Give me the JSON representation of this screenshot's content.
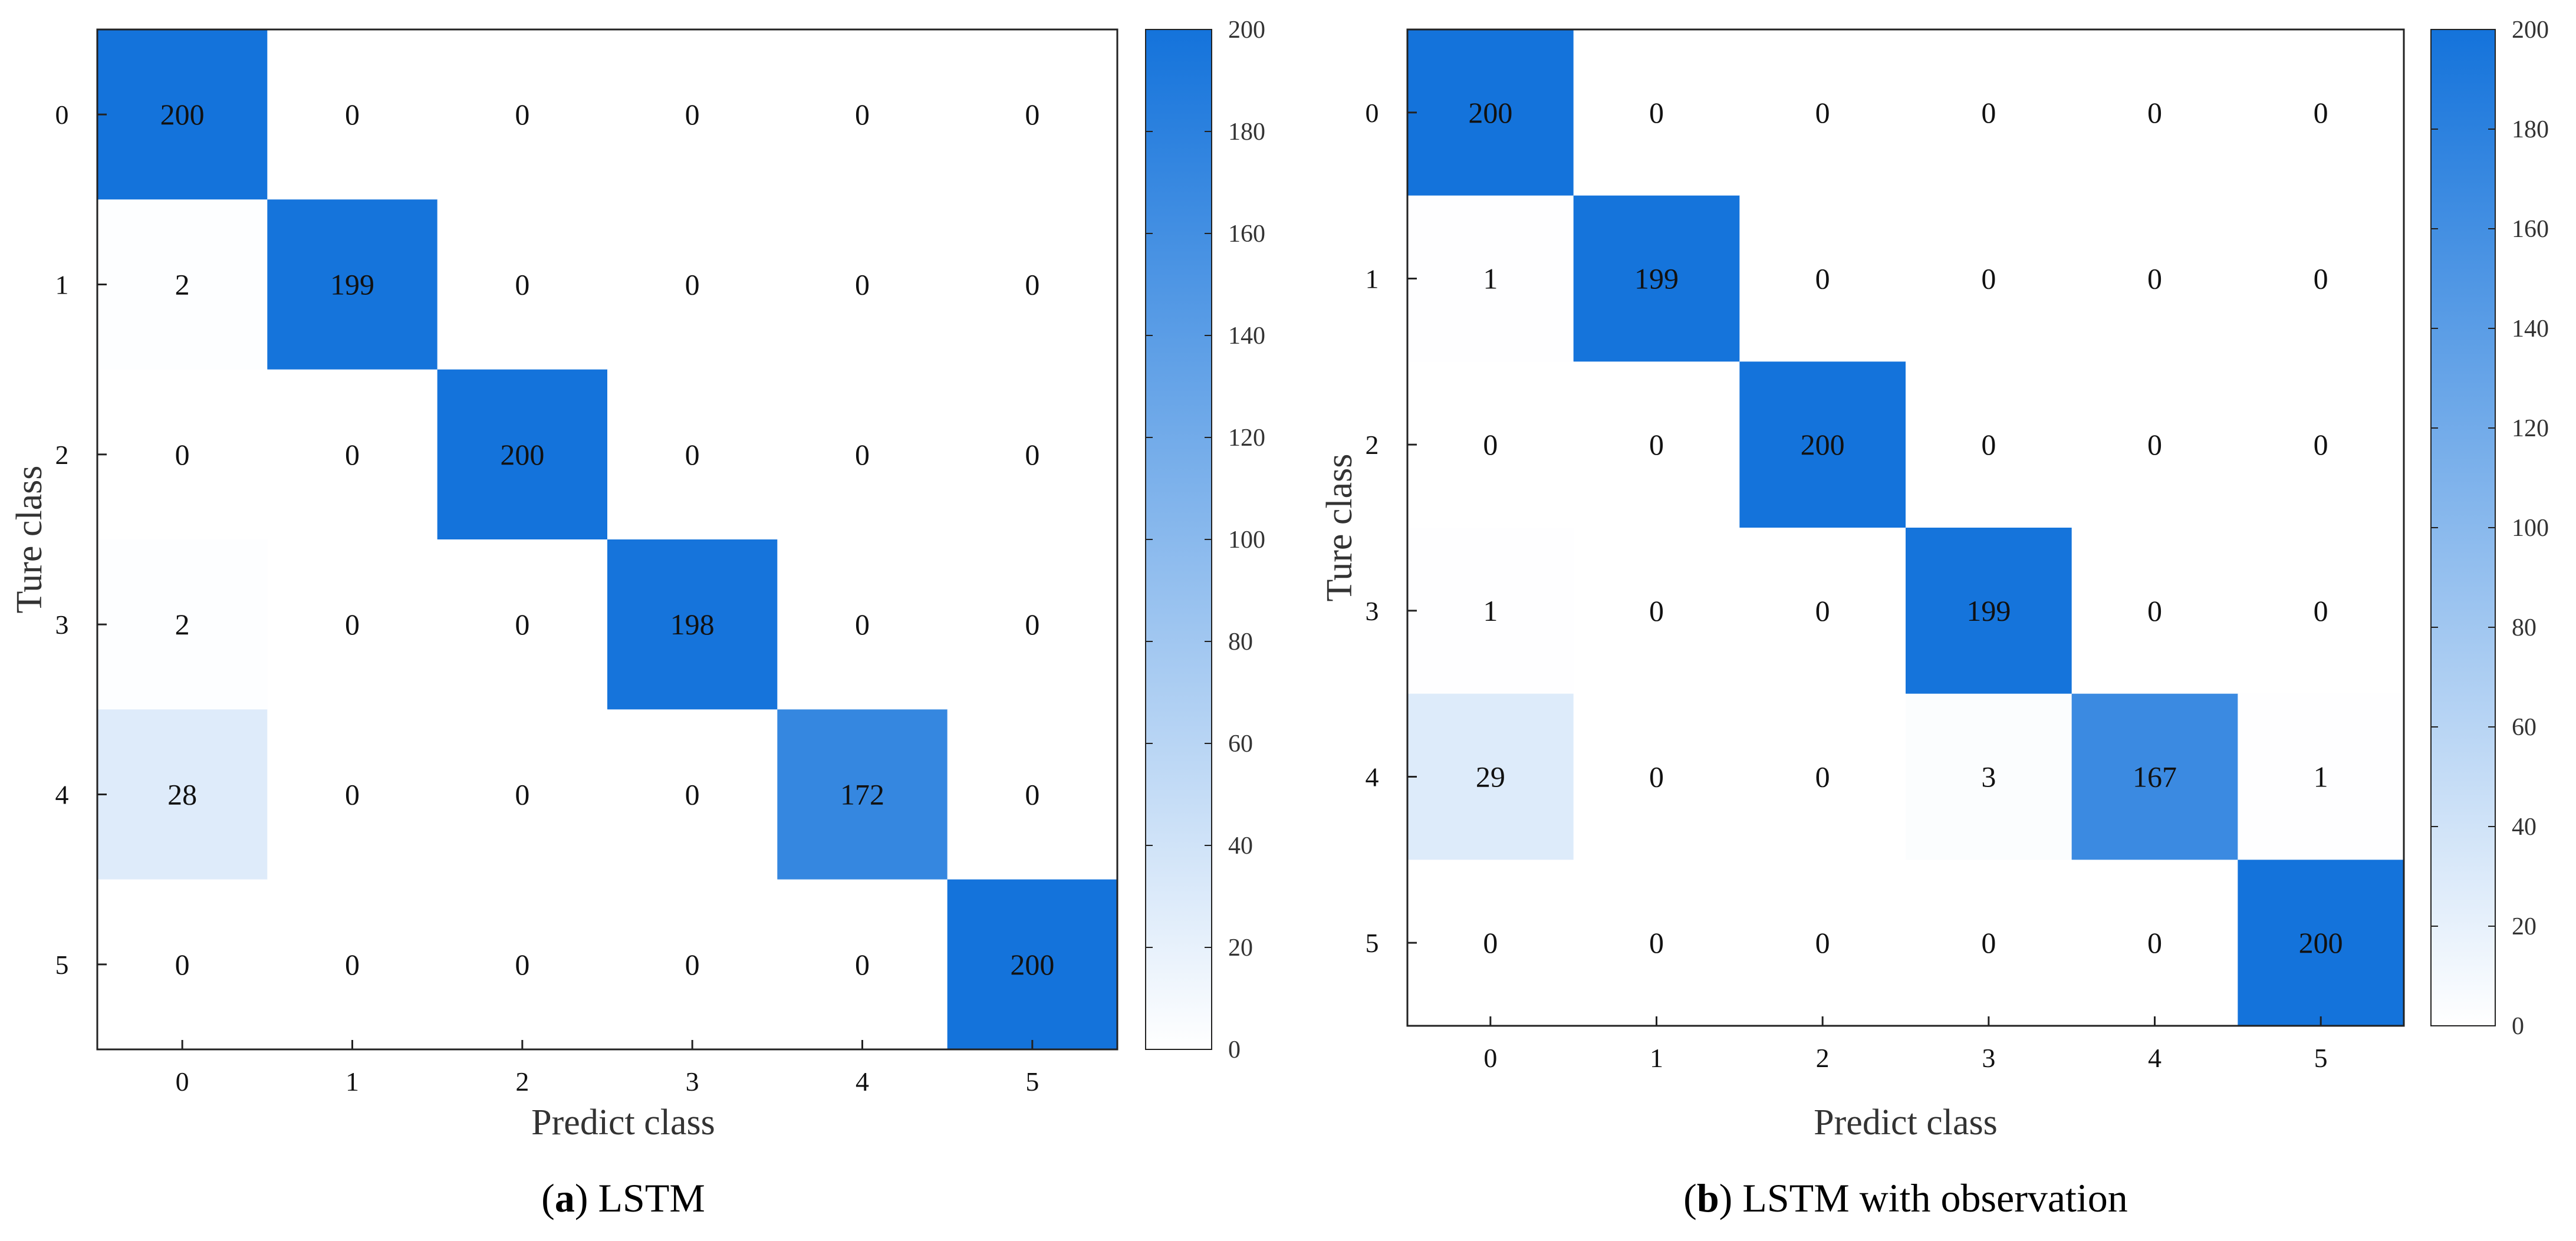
{
  "colors": {
    "high": "#1473db",
    "low": "#ffffff",
    "text": "#111111",
    "axis": "#222222"
  },
  "chart_data": [
    {
      "type": "heatmap",
      "title": "",
      "caption_letter": "a",
      "caption_text": "LSTM",
      "xlabel": "Predict class",
      "ylabel": "Ture class",
      "x_categories": [
        "0",
        "1",
        "2",
        "3",
        "4",
        "5"
      ],
      "y_categories": [
        "0",
        "1",
        "2",
        "3",
        "4",
        "5"
      ],
      "matrix": [
        [
          200,
          0,
          0,
          0,
          0,
          0
        ],
        [
          2,
          199,
          0,
          0,
          0,
          0
        ],
        [
          0,
          0,
          200,
          0,
          0,
          0
        ],
        [
          2,
          0,
          0,
          198,
          0,
          0
        ],
        [
          28,
          0,
          0,
          0,
          172,
          0
        ],
        [
          0,
          0,
          0,
          0,
          0,
          200
        ]
      ],
      "colorbar": {
        "range": [
          0,
          200
        ],
        "ticks": [
          0,
          20,
          40,
          60,
          80,
          100,
          120,
          140,
          160,
          180,
          200
        ]
      }
    },
    {
      "type": "heatmap",
      "title": "",
      "caption_letter": "b",
      "caption_text": "LSTM with observation",
      "xlabel": "Predict class",
      "ylabel": "Ture class",
      "x_categories": [
        "0",
        "1",
        "2",
        "3",
        "4",
        "5"
      ],
      "y_categories": [
        "0",
        "1",
        "2",
        "3",
        "4",
        "5"
      ],
      "matrix": [
        [
          200,
          0,
          0,
          0,
          0,
          0
        ],
        [
          1,
          199,
          0,
          0,
          0,
          0
        ],
        [
          0,
          0,
          200,
          0,
          0,
          0
        ],
        [
          1,
          0,
          0,
          199,
          0,
          0
        ],
        [
          29,
          0,
          0,
          3,
          167,
          1
        ],
        [
          0,
          0,
          0,
          0,
          0,
          200
        ]
      ],
      "colorbar": {
        "range": [
          0,
          200
        ],
        "ticks": [
          0,
          20,
          40,
          60,
          80,
          100,
          120,
          140,
          160,
          180,
          200
        ]
      }
    }
  ]
}
